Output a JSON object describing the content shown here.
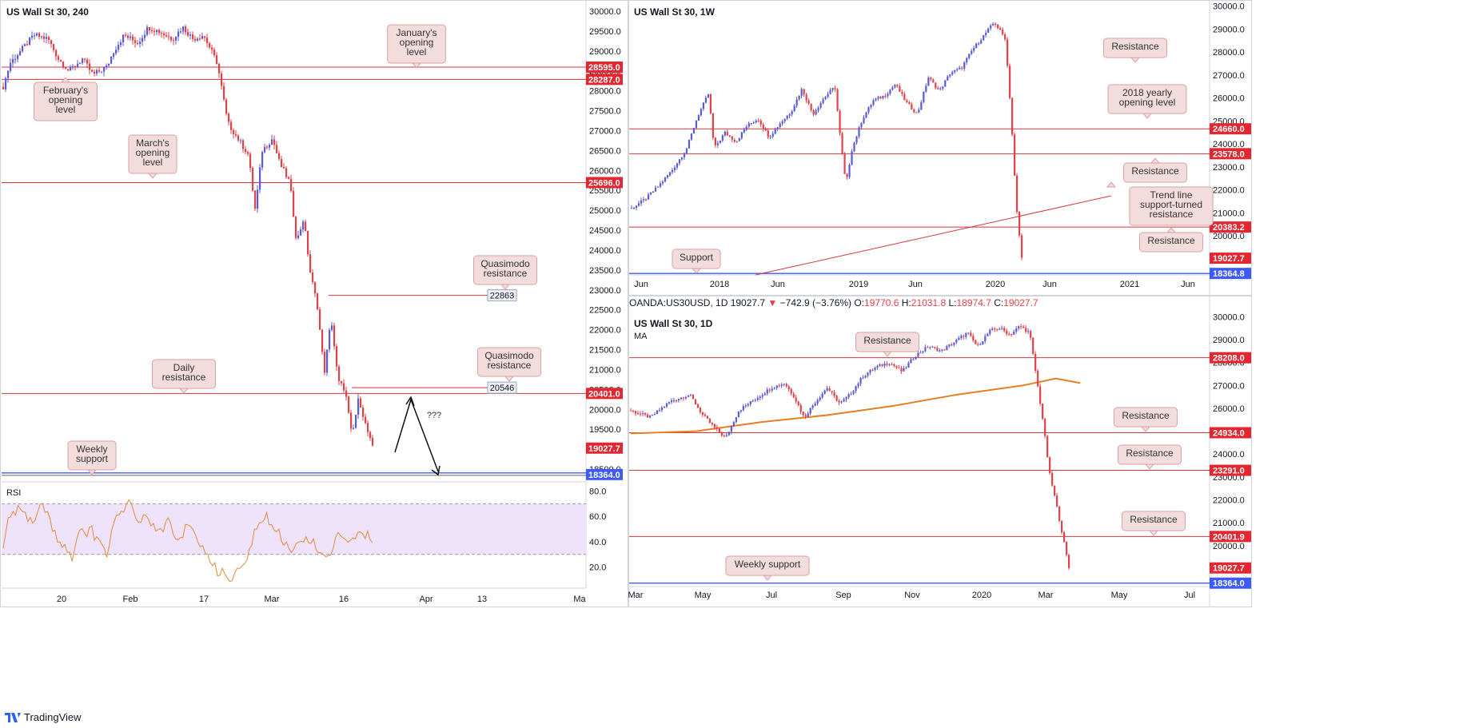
{
  "colors": {
    "up": "#5b5bd6",
    "down": "#e3414a",
    "level": "#d4353c",
    "blueLine": "#3d5afe",
    "rsi": "#e08a3c",
    "rsiBand": "#efe3fb",
    "ma": "#e67e22",
    "callout": "#f3dcdc",
    "calloutBorder": "#d9a2a2",
    "priceBox": "#e3262f"
  },
  "brand": {
    "name": "TradingView",
    "logo": "tradingview-logo-icon"
  },
  "chart_data": [
    {
      "id": "h4",
      "type": "candlestick",
      "title": "US Wall St 30, 240",
      "ylim": [
        18200,
        30200
      ],
      "y_ticks": [
        30000.0,
        29500.0,
        29000.0,
        28500.0,
        28000.0,
        27500.0,
        27000.0,
        26500.0,
        26000.0,
        25500.0,
        25000.0,
        24500.0,
        24000.0,
        23500.0,
        23000.0,
        22500.0,
        22000.0,
        21500.0,
        21000.0,
        20500.0,
        20000.0,
        19500.0,
        19000.0,
        18500.0
      ],
      "x_ticks": [
        "20",
        "Feb",
        "17",
        "Mar",
        "16",
        "Apr",
        "13",
        "Ma"
      ],
      "current_price": "19027.7",
      "levels": [
        {
          "value": 28595.0,
          "label": "28595.0",
          "kind": "red"
        },
        {
          "value": 28287.0,
          "label": "28287.0",
          "kind": "red"
        },
        {
          "value": 25696.0,
          "label": "25696.0",
          "kind": "red"
        },
        {
          "value": 20401.0,
          "label": "20401.0",
          "kind": "red"
        },
        {
          "value": 18364.0,
          "label": "18364.0",
          "kind": "blue"
        }
      ],
      "segments": [
        {
          "value": 22863,
          "label": "22863"
        },
        {
          "value": 20546,
          "label": "20546"
        }
      ],
      "callouts": [
        {
          "text": "January's opening level",
          "target": 28595
        },
        {
          "text": "February's opening level",
          "target": 28287
        },
        {
          "text": "March's opening level",
          "target": 25696
        },
        {
          "text": "Quasimodo resistance",
          "target": 22863
        },
        {
          "text": "Quasimodo resistance",
          "target": 20546
        },
        {
          "text": "Daily resistance",
          "target": 20401
        },
        {
          "text": "Weekly support",
          "target": 18364
        }
      ],
      "projection_label": "???",
      "path": [
        [
          0,
          28100
        ],
        [
          4,
          28700
        ],
        [
          10,
          29000
        ],
        [
          18,
          29400
        ],
        [
          26,
          29300
        ],
        [
          32,
          28800
        ],
        [
          38,
          28500
        ],
        [
          46,
          28800
        ],
        [
          52,
          28400
        ],
        [
          60,
          28600
        ],
        [
          64,
          29000
        ],
        [
          70,
          29400
        ],
        [
          78,
          29200
        ],
        [
          84,
          29600
        ],
        [
          90,
          29500
        ],
        [
          98,
          29300
        ],
        [
          104,
          29600
        ],
        [
          110,
          29300
        ],
        [
          116,
          29400
        ],
        [
          124,
          28700
        ],
        [
          130,
          27200
        ],
        [
          136,
          26800
        ],
        [
          142,
          26400
        ],
        [
          146,
          25000
        ],
        [
          150,
          26500
        ],
        [
          156,
          26800
        ],
        [
          160,
          26200
        ],
        [
          166,
          25700
        ],
        [
          170,
          24200
        ],
        [
          174,
          24800
        ],
        [
          178,
          23400
        ],
        [
          182,
          22600
        ],
        [
          186,
          20900
        ],
        [
          190,
          22300
        ],
        [
          194,
          20700
        ],
        [
          198,
          20500
        ],
        [
          202,
          19300
        ],
        [
          206,
          20300
        ],
        [
          210,
          19600
        ],
        [
          214,
          19027.7
        ]
      ]
    },
    {
      "id": "rsi",
      "type": "line",
      "title": "RSI",
      "ylim": [
        4,
        86
      ],
      "y_ticks": [
        80.0,
        60.0,
        40.0,
        20.0
      ],
      "band": [
        30,
        70
      ],
      "path": [
        [
          0,
          40
        ],
        [
          4,
          60
        ],
        [
          10,
          65
        ],
        [
          16,
          55
        ],
        [
          22,
          70
        ],
        [
          26,
          60
        ],
        [
          30,
          45
        ],
        [
          36,
          35
        ],
        [
          40,
          25
        ],
        [
          44,
          45
        ],
        [
          50,
          50
        ],
        [
          56,
          40
        ],
        [
          60,
          30
        ],
        [
          64,
          55
        ],
        [
          70,
          65
        ],
        [
          74,
          70
        ],
        [
          78,
          55
        ],
        [
          84,
          60
        ],
        [
          90,
          45
        ],
        [
          96,
          55
        ],
        [
          100,
          40
        ],
        [
          106,
          50
        ],
        [
          112,
          45
        ],
        [
          116,
          35
        ],
        [
          120,
          25
        ],
        [
          124,
          18
        ],
        [
          128,
          13
        ],
        [
          132,
          10
        ],
        [
          136,
          16
        ],
        [
          140,
          20
        ],
        [
          144,
          40
        ],
        [
          148,
          55
        ],
        [
          152,
          60
        ],
        [
          156,
          50
        ],
        [
          160,
          45
        ],
        [
          164,
          40
        ],
        [
          168,
          30
        ],
        [
          172,
          40
        ],
        [
          176,
          45
        ],
        [
          180,
          40
        ],
        [
          184,
          30
        ],
        [
          188,
          25
        ],
        [
          192,
          40
        ],
        [
          196,
          45
        ],
        [
          200,
          35
        ],
        [
          204,
          42
        ],
        [
          208,
          48
        ],
        [
          212,
          45
        ],
        [
          214,
          40
        ]
      ]
    },
    {
      "id": "weekly",
      "type": "candlestick",
      "title": "US Wall St 30, 1W",
      "ylim": [
        18300,
        30200
      ],
      "y_ticks": [
        30000.0,
        29000.0,
        28000.0,
        27000.0,
        26000.0,
        25000.0,
        24000.0,
        23000.0,
        22000.0,
        21000.0,
        20000.0
      ],
      "x_ticks": [
        "Jun",
        "2018",
        "Jun",
        "2019",
        "Jun",
        "2020",
        "Jun",
        "2021",
        "Jun"
      ],
      "current_price": "19027.7",
      "levels": [
        {
          "value": 24660.0,
          "label": "24660.0",
          "kind": "red"
        },
        {
          "value": 23578.0,
          "label": "23578.0",
          "kind": "red"
        },
        {
          "value": 20383.2,
          "label": "20383.2",
          "kind": "red"
        },
        {
          "value": 18364.8,
          "label": "18364.8",
          "kind": "blue"
        }
      ],
      "callouts": [
        {
          "text": "Resistance",
          "target": 28000
        },
        {
          "text": "2018 yearly opening level",
          "target": 24660
        },
        {
          "text": "Resistance",
          "target": 23578
        },
        {
          "text": "Trend line support-turned resistance",
          "target": 21700
        },
        {
          "text": "Resistance",
          "target": 20383
        },
        {
          "text": "Support",
          "target": 18364
        }
      ],
      "path": [
        [
          0,
          21200
        ],
        [
          5,
          21600
        ],
        [
          10,
          22200
        ],
        [
          15,
          22900
        ],
        [
          20,
          23800
        ],
        [
          24,
          25200
        ],
        [
          28,
          26200
        ],
        [
          30,
          23800
        ],
        [
          34,
          24500
        ],
        [
          38,
          24100
        ],
        [
          42,
          24800
        ],
        [
          46,
          25100
        ],
        [
          50,
          24300
        ],
        [
          54,
          24900
        ],
        [
          58,
          25400
        ],
        [
          62,
          26400
        ],
        [
          66,
          25300
        ],
        [
          70,
          26000
        ],
        [
          74,
          26500
        ],
        [
          76,
          24200
        ],
        [
          78,
          22200
        ],
        [
          80,
          23700
        ],
        [
          84,
          25100
        ],
        [
          88,
          25900
        ],
        [
          92,
          26100
        ],
        [
          96,
          26600
        ],
        [
          100,
          25800
        ],
        [
          104,
          25300
        ],
        [
          108,
          26900
        ],
        [
          112,
          26300
        ],
        [
          116,
          27100
        ],
        [
          120,
          27300
        ],
        [
          124,
          28100
        ],
        [
          128,
          28700
        ],
        [
          132,
          29300
        ],
        [
          136,
          28600
        ],
        [
          138,
          25500
        ],
        [
          140,
          21300
        ],
        [
          142,
          19027.7
        ]
      ]
    },
    {
      "id": "daily",
      "type": "candlestick",
      "title": "US Wall St 30, 1D",
      "subtitle": "MA",
      "ylim": [
        18250,
        30150
      ],
      "y_ticks": [
        30000.0,
        29000.0,
        28000.0,
        27000.0,
        26000.0,
        25000.0,
        24000.0,
        23000.0,
        22000.0,
        21000.0,
        20000.0
      ],
      "x_ticks": [
        "Mar",
        "May",
        "Jul",
        "Sep",
        "Nov",
        "2020",
        "Mar",
        "May",
        "Jul"
      ],
      "current_price": "19027.7",
      "levels": [
        {
          "value": 28208.0,
          "label": "28208.0",
          "kind": "red"
        },
        {
          "value": 24934.0,
          "label": "24934.0",
          "kind": "red"
        },
        {
          "value": 23291.0,
          "label": "23291.0",
          "kind": "red"
        },
        {
          "value": 20401.9,
          "label": "20401.9",
          "kind": "red"
        },
        {
          "value": 18364.0,
          "label": "18364.0",
          "kind": "blue"
        }
      ],
      "callouts": [
        {
          "text": "Resistance",
          "target": 28208
        },
        {
          "text": "Resistance",
          "target": 24934
        },
        {
          "text": "Resistance",
          "target": 23291
        },
        {
          "text": "Resistance",
          "target": 20401
        },
        {
          "text": "Weekly support",
          "target": 18364
        }
      ],
      "ma_path": [
        [
          0,
          24900
        ],
        [
          40,
          25000
        ],
        [
          80,
          25400
        ],
        [
          120,
          25700
        ],
        [
          160,
          26100
        ],
        [
          200,
          26600
        ],
        [
          240,
          27000
        ],
        [
          260,
          27300
        ],
        [
          275,
          27100
        ]
      ],
      "path": [
        [
          0,
          25900
        ],
        [
          12,
          25600
        ],
        [
          24,
          26300
        ],
        [
          36,
          26600
        ],
        [
          44,
          25700
        ],
        [
          52,
          25100
        ],
        [
          58,
          24700
        ],
        [
          66,
          25900
        ],
        [
          76,
          26400
        ],
        [
          86,
          26900
        ],
        [
          94,
          27100
        ],
        [
          100,
          26500
        ],
        [
          106,
          25600
        ],
        [
          112,
          26200
        ],
        [
          120,
          26900
        ],
        [
          128,
          26200
        ],
        [
          134,
          26600
        ],
        [
          142,
          27400
        ],
        [
          150,
          27800
        ],
        [
          158,
          28000
        ],
        [
          166,
          27600
        ],
        [
          174,
          28300
        ],
        [
          182,
          28700
        ],
        [
          190,
          28500
        ],
        [
          198,
          28900
        ],
        [
          206,
          29300
        ],
        [
          212,
          28700
        ],
        [
          220,
          29400
        ],
        [
          226,
          29500
        ],
        [
          232,
          29200
        ],
        [
          238,
          29600
        ],
        [
          244,
          29300
        ],
        [
          248,
          27400
        ],
        [
          252,
          25500
        ],
        [
          256,
          23200
        ],
        [
          260,
          21900
        ],
        [
          264,
          20500
        ],
        [
          268,
          19027.7
        ]
      ]
    }
  ],
  "info_bar": {
    "symbol": "OANDA:US30USD, 1D",
    "price": "19027.7",
    "arrow": "▼",
    "change": "−742.9 (−3.76%)",
    "o_label": "O:",
    "o": "19770.6",
    "h_label": "H:",
    "h": "21031.8",
    "l_label": "L:",
    "l": "18974.7",
    "c_label": "C:",
    "c": "19027.7"
  }
}
